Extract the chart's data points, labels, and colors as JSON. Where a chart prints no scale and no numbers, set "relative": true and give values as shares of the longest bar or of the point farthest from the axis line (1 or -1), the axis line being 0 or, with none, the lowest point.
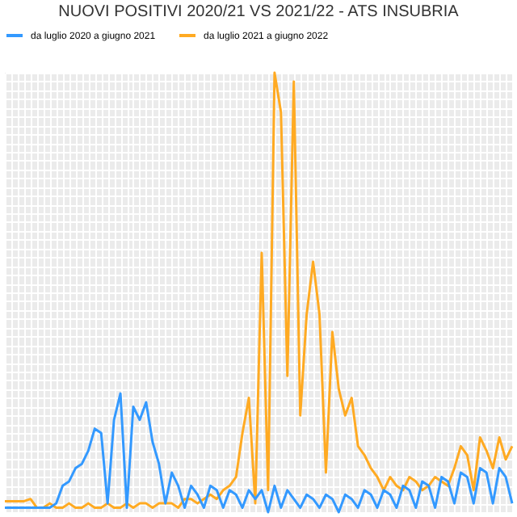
{
  "chart_data": {
    "type": "line",
    "title": "NUOVI POSITIVI 2020/21 VS 2021/22 - ATS INSUBRIA",
    "relative": true,
    "grid": true,
    "legend": "top",
    "tick_labels": false,
    "line_style": "solid",
    "marker": "none",
    "categories": [
      null,
      null,
      null,
      null,
      null,
      null,
      null,
      null,
      null,
      null,
      null,
      null,
      null,
      null,
      null,
      null,
      null,
      null,
      null,
      null,
      null,
      null,
      null,
      null,
      null,
      null,
      null,
      null,
      null,
      null,
      null,
      null,
      null,
      null,
      null,
      null,
      null,
      null,
      null,
      null,
      null,
      null,
      null,
      null,
      null,
      null,
      null,
      null,
      null,
      null,
      null,
      null,
      null,
      null,
      null,
      null,
      null,
      null,
      null,
      null,
      null,
      null,
      null,
      null,
      null,
      null,
      null,
      null,
      null,
      null,
      null,
      null,
      null,
      null,
      null,
      null,
      null,
      null,
      null,
      null
    ],
    "series": [
      {
        "name": "da luglio 2020 a giugno 2021",
        "color": "#3399ff",
        "values": [
          0.01,
          0.01,
          0.01,
          0.01,
          0.01,
          0.01,
          0.01,
          0.01,
          0.02,
          0.06,
          0.07,
          0.1,
          0.11,
          0.14,
          0.19,
          0.18,
          0.02,
          0.21,
          0.27,
          0.01,
          0.24,
          0.21,
          0.25,
          0.16,
          0.11,
          0.02,
          0.09,
          0.06,
          0.01,
          0.06,
          0.04,
          0.01,
          0.06,
          0.05,
          0.01,
          0.05,
          0.04,
          0.01,
          0.05,
          0.03,
          0.05,
          0.0,
          0.06,
          0.01,
          0.05,
          0.03,
          0.01,
          0.04,
          0.03,
          0.01,
          0.04,
          0.03,
          0.0,
          0.04,
          0.03,
          0.01,
          0.05,
          0.04,
          0.01,
          0.05,
          0.04,
          0.01,
          0.06,
          0.05,
          0.01,
          0.07,
          0.06,
          0.01,
          0.08,
          0.07,
          0.02,
          0.09,
          0.08,
          0.02,
          0.1,
          0.09,
          0.02,
          0.1,
          0.08,
          0.02
        ]
      },
      {
        "name": "da luglio 2021 a giugno 2022",
        "color": "#ffaa22",
        "values": [
          0.025,
          0.025,
          0.025,
          0.025,
          0.03,
          0.01,
          0.01,
          0.02,
          0.01,
          0.01,
          0.02,
          0.01,
          0.01,
          0.02,
          0.01,
          0.01,
          0.02,
          0.01,
          0.01,
          0.02,
          0.01,
          0.02,
          0.02,
          0.01,
          0.02,
          0.02,
          0.02,
          0.01,
          0.03,
          0.03,
          0.02,
          0.03,
          0.04,
          0.03,
          0.05,
          0.06,
          0.08,
          0.18,
          0.26,
          0.02,
          0.59,
          0.05,
          1.0,
          0.91,
          0.31,
          0.98,
          0.22,
          0.45,
          0.57,
          0.45,
          0.09,
          0.41,
          0.28,
          0.22,
          0.26,
          0.15,
          0.13,
          0.1,
          0.08,
          0.05,
          0.08,
          0.06,
          0.05,
          0.08,
          0.07,
          0.05,
          0.06,
          0.08,
          0.07,
          0.06,
          0.1,
          0.15,
          0.13,
          0.05,
          0.17,
          0.14,
          0.1,
          0.17,
          0.12,
          0.15
        ]
      }
    ]
  }
}
